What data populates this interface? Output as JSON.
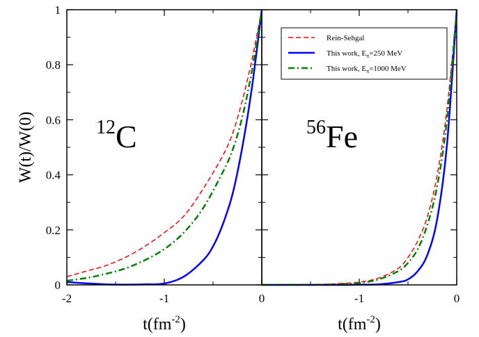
{
  "chart_data": [
    {
      "type": "line",
      "panel": "left",
      "annotation": {
        "mass_number": "12",
        "element": "C"
      },
      "xlabel": {
        "base": "t(fm",
        "exp": "-2",
        "close": ")"
      },
      "ylabel": "W(t)/W(0)",
      "xlim": [
        -2,
        0
      ],
      "ylim": [
        0,
        1
      ],
      "x_ticks": [
        -2,
        -1,
        0
      ],
      "x_tick_labels": [
        "-2",
        "-1",
        "0"
      ],
      "y_ticks": [
        0,
        0.2,
        0.4,
        0.6,
        0.8,
        1
      ],
      "y_tick_labels": [
        "0",
        "0.2",
        "0.4",
        "0.6",
        "0.8",
        "1"
      ],
      "series": [
        {
          "key": "rs",
          "color": "#ff0000",
          "x": [
            -2.0,
            -1.8,
            -1.6,
            -1.4,
            -1.2,
            -1.0,
            -0.8,
            -0.6,
            -0.4,
            -0.3,
            -0.2,
            -0.1,
            0.0
          ],
          "values": [
            0.03,
            0.05,
            0.07,
            0.1,
            0.14,
            0.19,
            0.25,
            0.35,
            0.47,
            0.55,
            0.67,
            0.82,
            1.0
          ]
        },
        {
          "key": "w250",
          "color": "#0000ff",
          "x": [
            -2.0,
            -1.6,
            -1.4,
            -1.2,
            -1.0,
            -0.8,
            -0.6,
            -0.5,
            -0.4,
            -0.3,
            -0.2,
            -0.1,
            0.0
          ],
          "values": [
            0.01,
            0.002,
            0.001,
            0.002,
            0.005,
            0.03,
            0.09,
            0.14,
            0.22,
            0.33,
            0.5,
            0.72,
            1.0
          ]
        },
        {
          "key": "w1000",
          "color": "#008000",
          "x": [
            -2.0,
            -1.8,
            -1.6,
            -1.4,
            -1.2,
            -1.0,
            -0.8,
            -0.6,
            -0.4,
            -0.3,
            -0.2,
            -0.1,
            0.0
          ],
          "values": [
            0.015,
            0.025,
            0.04,
            0.06,
            0.09,
            0.13,
            0.19,
            0.28,
            0.41,
            0.49,
            0.61,
            0.78,
            1.0
          ]
        }
      ]
    },
    {
      "type": "line",
      "panel": "right",
      "annotation": {
        "mass_number": "56",
        "element": "Fe"
      },
      "xlabel": {
        "base": "t(fm",
        "exp": "-2",
        "close": ")"
      },
      "xlim": [
        -2,
        0
      ],
      "ylim": [
        0,
        1
      ],
      "x_ticks": [
        -2,
        -1,
        0
      ],
      "x_tick_labels": [
        "",
        "-1",
        "0"
      ],
      "y_ticks": [
        0,
        0.2,
        0.4,
        0.6,
        0.8,
        1
      ],
      "series": [
        {
          "key": "rs",
          "color": "#ff0000",
          "x": [
            -2.0,
            -1.4,
            -1.2,
            -1.0,
            -0.8,
            -0.6,
            -0.5,
            -0.4,
            -0.3,
            -0.2,
            -0.1,
            0.0
          ],
          "values": [
            0.0,
            0.002,
            0.005,
            0.01,
            0.025,
            0.06,
            0.1,
            0.16,
            0.25,
            0.4,
            0.64,
            1.0
          ]
        },
        {
          "key": "w250",
          "color": "#0000ff",
          "x": [
            -2.0,
            -1.2,
            -1.0,
            -0.8,
            -0.6,
            -0.5,
            -0.4,
            -0.3,
            -0.2,
            -0.1,
            0.0
          ],
          "values": [
            0.0,
            0.0,
            0.001,
            0.002,
            0.01,
            0.02,
            0.05,
            0.11,
            0.24,
            0.51,
            1.0
          ]
        },
        {
          "key": "w1000",
          "color": "#008000",
          "x": [
            -2.0,
            -1.4,
            -1.2,
            -1.0,
            -0.8,
            -0.6,
            -0.5,
            -0.4,
            -0.3,
            -0.2,
            -0.1,
            0.0
          ],
          "values": [
            0.0,
            0.001,
            0.003,
            0.007,
            0.02,
            0.05,
            0.08,
            0.13,
            0.22,
            0.36,
            0.6,
            1.0
          ]
        }
      ]
    }
  ],
  "legend": {
    "placement": "top-right",
    "entries": [
      {
        "key": "rs",
        "label": "Rein-Sehgal",
        "color": "#ff0000",
        "style": "dashed"
      },
      {
        "key": "w250",
        "label_main": "This work, E",
        "label_sub": "π",
        "label_rest": "=250 MeV",
        "color": "#0000ff",
        "style": "solid"
      },
      {
        "key": "w1000",
        "label_main": "This work, E",
        "label_sub": "π",
        "label_rest": "=1000 MeV",
        "color": "#008000",
        "style": "dash-dot"
      }
    ]
  }
}
